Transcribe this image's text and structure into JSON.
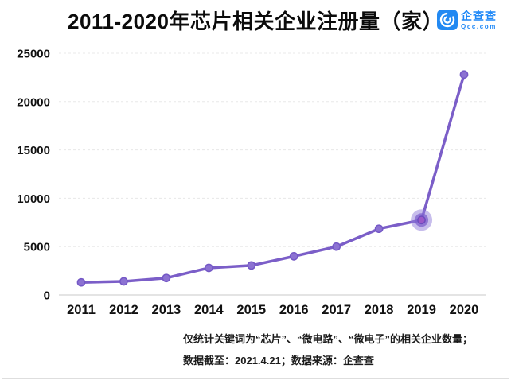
{
  "title": "2011-2020年芯片相关企业注册量（家）",
  "logo": {
    "name": "企查查",
    "domain": "Qcc.com",
    "icon": "qcc-c-spiral-icon",
    "blue": "#1E88F7",
    "icon_bg": "#2289F2"
  },
  "footer": {
    "line1": "仅统计关键词为“芯片”、“微电路”、“微电子”的相关企业数量；",
    "line2": "数据截至：2021.4.21；数据来源：企查查"
  },
  "colors": {
    "line": "#7B5EC8",
    "marker_fill": "#8C72D2",
    "marker_stroke": "#7458C6",
    "highlight_halo": "#8F7BDA",
    "highlight_mid": "#7E62CE",
    "highlight_center_fill": "#9B59C8",
    "highlight_center_stroke": "#6C4CBE",
    "grid": "#E8E8E8",
    "axis_baseline": "#C9C9C9",
    "tick_text": "#111111"
  },
  "chart_data": {
    "type": "line",
    "title": "2011-2020年芯片相关企业注册量（家）",
    "categories": [
      "2011",
      "2012",
      "2013",
      "2014",
      "2015",
      "2016",
      "2017",
      "2018",
      "2019",
      "2020"
    ],
    "values": [
      1300,
      1400,
      1750,
      2800,
      3050,
      4000,
      5000,
      6850,
      7750,
      22800
    ],
    "highlight_index": 8,
    "xlabel": "",
    "ylabel": "",
    "ylim": [
      0,
      25000
    ],
    "yticks": [
      0,
      5000,
      10000,
      15000,
      20000,
      25000
    ],
    "grid": "horizontal-dashed",
    "legend": "none"
  }
}
